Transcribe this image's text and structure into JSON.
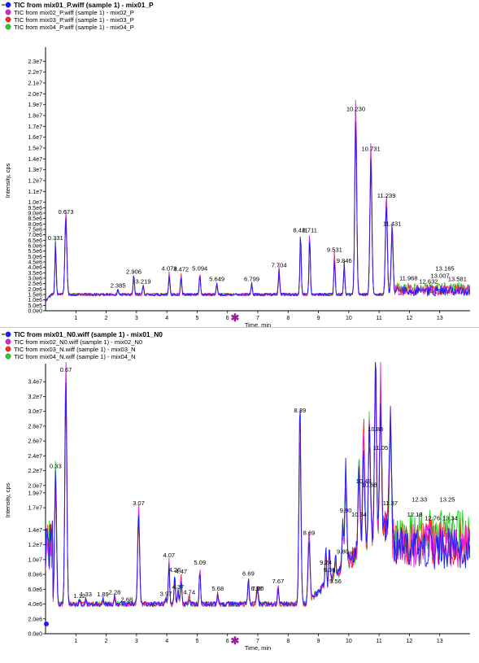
{
  "colors": {
    "series1": "#1a1aff",
    "series2": "#e020e0",
    "series3": "#ff2a1a",
    "series4": "#22d022",
    "axis": "#000000",
    "marker": "#9b1d9b"
  },
  "chart_data": [
    {
      "type": "line",
      "legend": {
        "placement": "top-left",
        "entries": [
          "TIC from mix01_P.wiff (sample 1) - mix01_P",
          "TIC from mix02_P.wiff (sample 1) - mix02_P",
          "TIC from mix03_P.wiff (sample 1) - mix03_P",
          "TIC from mix04_P.wiff (sample 1) - mix04_P"
        ]
      },
      "xlabel": "Time, min",
      "ylabel": "Intensity, cps",
      "xlim": [
        0,
        14.0
      ],
      "ylim": [
        0,
        24000000
      ],
      "x_ticks": [
        "1",
        "2",
        "3",
        "4",
        "5",
        "6",
        "7",
        "8",
        "9",
        "10",
        "11",
        "12",
        "13"
      ],
      "y_ticks": [
        "0.0e0",
        "5.0e5",
        "1.0e6",
        "1.5e6",
        "2.0e6",
        "2.5e6",
        "3.0e6",
        "3.5e6",
        "4.0e6",
        "4.5e6",
        "5.0e6",
        "5.5e6",
        "6.0e6",
        "6.5e6",
        "7.0e6",
        "7.5e6",
        "8.0e6",
        "8.5e6",
        "9.0e6",
        "9.5e6",
        "1.0e7",
        "1.1e7",
        "1.2e7",
        "1.3e7",
        "1.4e7",
        "1.5e7",
        "1.6e7",
        "1.7e7",
        "1.8e7",
        "1.9e7",
        "2.0e7",
        "2.1e7",
        "2.2e7",
        "2.3e7"
      ],
      "y_tick_values": [
        0,
        500000,
        1000000,
        1500000,
        2000000,
        2500000,
        3000000,
        3500000,
        4000000,
        4500000,
        5000000,
        5500000,
        6000000,
        6500000,
        7000000,
        7500000,
        8000000,
        8500000,
        9000000,
        9500000,
        10000000,
        11000000,
        12000000,
        13000000,
        14000000,
        15000000,
        16000000,
        17000000,
        18000000,
        19000000,
        20000000,
        21000000,
        22000000,
        23000000
      ],
      "peaks": [
        {
          "label": "0.331",
          "x": 0.33,
          "y": 6300000
        },
        {
          "label": "0.673",
          "x": 0.67,
          "y": 8700000
        },
        {
          "label": "2.385",
          "x": 2.39,
          "y": 1900000
        },
        {
          "label": "2.906",
          "x": 2.91,
          "y": 3200000
        },
        {
          "label": "3.219",
          "x": 3.22,
          "y": 2300000
        },
        {
          "label": "4.079",
          "x": 4.08,
          "y": 3500000
        },
        {
          "label": "4.472",
          "x": 4.47,
          "y": 3400000
        },
        {
          "label": "5.094",
          "x": 5.09,
          "y": 3500000
        },
        {
          "label": "5.649",
          "x": 5.65,
          "y": 2500000
        },
        {
          "label": "6.799",
          "x": 6.8,
          "y": 2500000
        },
        {
          "label": "7.704",
          "x": 7.7,
          "y": 3800000
        },
        {
          "label": "8.411",
          "x": 8.41,
          "y": 7000000
        },
        {
          "label": "8.711",
          "x": 8.71,
          "y": 7000000
        },
        {
          "label": "9.531",
          "x": 9.53,
          "y": 5200000
        },
        {
          "label": "9.846",
          "x": 9.85,
          "y": 4200000
        },
        {
          "label": "10.230",
          "x": 10.23,
          "y": 18200000
        },
        {
          "label": "10.731",
          "x": 10.73,
          "y": 14500000
        },
        {
          "label": "11.239",
          "x": 11.24,
          "y": 10200000
        },
        {
          "label": "11.431",
          "x": 11.43,
          "y": 7600000
        },
        {
          "label": "11.968",
          "x": 11.97,
          "y": 2600000
        },
        {
          "label": "12.632",
          "x": 12.63,
          "y": 2300000
        },
        {
          "label": "13.007",
          "x": 13.01,
          "y": 2800000
        },
        {
          "label": "13.165",
          "x": 13.17,
          "y": 3500000
        },
        {
          "label": "13.581",
          "x": 13.58,
          "y": 2500000
        }
      ],
      "baseline": 1500000,
      "noise_region": [
        11.55,
        14.0
      ],
      "noise_level": 1800000
    },
    {
      "type": "line",
      "legend": {
        "placement": "top-left",
        "entries": [
          "TIC from mix01_N0.wiff (sample 1) - mix01_N0",
          "TIC from mix02_N0.wiff (sample 1) - mix02_N0",
          "TIC from mix03_N.wiff (sample 1) - mix03_N",
          "TIC from mix04_N.wiff (sample 1) - mix04_N"
        ]
      },
      "xlabel": "Time, min",
      "ylabel": "Intensity, cps",
      "xlim": [
        0,
        14.0
      ],
      "ylim": [
        0,
        36000000
      ],
      "x_ticks": [
        "1",
        "2",
        "3",
        "4",
        "5",
        "6",
        "7",
        "8",
        "9",
        "10",
        "11",
        "12",
        "13"
      ],
      "y_ticks": [
        "0.0e0",
        "2.0e6",
        "4.0e6",
        "6.0e6",
        "8.0e6",
        "1.0e7",
        "1.2e7",
        "1.4e7",
        "1.7e7",
        "1.9e7",
        "2.0e7",
        "2.2e7",
        "2.4e7",
        "2.6e7",
        "2.8e7",
        "3.0e7",
        "3.2e7",
        "3.4e7"
      ],
      "y_tick_values": [
        0,
        2000000,
        4000000,
        6000000,
        8000000,
        10000000,
        12000000,
        14000000,
        17000000,
        19000000,
        20000000,
        22000000,
        24000000,
        26000000,
        28000000,
        30000000,
        32000000,
        34000000
      ],
      "peaks": [
        {
          "label": "0.33",
          "x": 0.33,
          "y": 22000000
        },
        {
          "label": "0.67",
          "x": 0.67,
          "y": 35000000
        },
        {
          "label": "1.12",
          "x": 1.12,
          "y": 4500000
        },
        {
          "label": "1.33",
          "x": 1.33,
          "y": 4700000
        },
        {
          "label": "1.89",
          "x": 1.89,
          "y": 4700000
        },
        {
          "label": "2.28",
          "x": 2.28,
          "y": 5000000
        },
        {
          "label": "2.68",
          "x": 2.68,
          "y": 4000000
        },
        {
          "label": "3.07",
          "x": 3.07,
          "y": 17000000
        },
        {
          "label": "3.97",
          "x": 3.97,
          "y": 4800000
        },
        {
          "label": "4.07",
          "x": 4.07,
          "y": 10000000
        },
        {
          "label": "4.26",
          "x": 4.26,
          "y": 8000000
        },
        {
          "label": "4.37",
          "x": 4.37,
          "y": 5700000
        },
        {
          "label": "4.47",
          "x": 4.47,
          "y": 7800000
        },
        {
          "label": "4.74",
          "x": 4.74,
          "y": 5000000
        },
        {
          "label": "5.09",
          "x": 5.09,
          "y": 9000000
        },
        {
          "label": "5.68",
          "x": 5.68,
          "y": 5500000
        },
        {
          "label": "6.69",
          "x": 6.69,
          "y": 7500000
        },
        {
          "label": "6.97",
          "x": 6.97,
          "y": 5500000
        },
        {
          "label": "7.00",
          "x": 7.0,
          "y": 5500000
        },
        {
          "label": "7.67",
          "x": 7.67,
          "y": 6500000
        },
        {
          "label": "8.39",
          "x": 8.39,
          "y": 29500000
        },
        {
          "label": "8.69",
          "x": 8.69,
          "y": 13000000
        },
        {
          "label": "9.24",
          "x": 9.24,
          "y": 9000000
        },
        {
          "label": "9.36",
          "x": 9.36,
          "y": 8000000
        },
        {
          "label": "9.56",
          "x": 9.56,
          "y": 6500000
        },
        {
          "label": "9.80",
          "x": 9.8,
          "y": 10500000
        },
        {
          "label": "9.90",
          "x": 9.9,
          "y": 16000000
        },
        {
          "label": "10.34",
          "x": 10.34,
          "y": 15500000
        },
        {
          "label": "10.49",
          "x": 10.49,
          "y": 20000000
        },
        {
          "label": "10.68",
          "x": 10.68,
          "y": 19500000
        },
        {
          "label": "10.88",
          "x": 10.88,
          "y": 27000000
        },
        {
          "label": "11.05",
          "x": 11.05,
          "y": 24500000
        },
        {
          "label": "11.37",
          "x": 11.37,
          "y": 17000000
        },
        {
          "label": "12.18",
          "x": 12.18,
          "y": 15500000
        },
        {
          "label": "12.33",
          "x": 12.33,
          "y": 17500000
        },
        {
          "label": "12.76",
          "x": 12.76,
          "y": 15000000
        },
        {
          "label": "13.25",
          "x": 13.25,
          "y": 17500000
        },
        {
          "label": "13.34",
          "x": 13.34,
          "y": 15000000
        }
      ],
      "baseline": 4000000,
      "noise_region": [
        11.45,
        14.0
      ],
      "noise_level": 11500000
    }
  ]
}
